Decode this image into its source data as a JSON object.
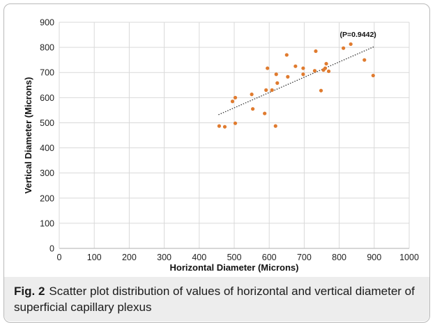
{
  "chart_data": {
    "type": "scatter",
    "title": "",
    "xlabel": "Horizontal Diameter (Microns)",
    "ylabel": "Vertical Diameter (Microns)",
    "xlim": [
      0,
      1000
    ],
    "ylim": [
      0,
      900
    ],
    "xticks": [
      0,
      100,
      200,
      300,
      400,
      500,
      600,
      700,
      800,
      900,
      1000
    ],
    "yticks": [
      0,
      100,
      200,
      300,
      400,
      500,
      600,
      700,
      800,
      900
    ],
    "grid": "both",
    "point_color": "#e07b2f",
    "trendline": {
      "style": "dotted",
      "x": [
        455,
        900
      ],
      "y": [
        532,
        803
      ]
    },
    "annotation": "(P=0.9442)",
    "points": [
      {
        "x": 457,
        "y": 487
      },
      {
        "x": 473,
        "y": 484
      },
      {
        "x": 495,
        "y": 585
      },
      {
        "x": 503,
        "y": 600
      },
      {
        "x": 503,
        "y": 498
      },
      {
        "x": 550,
        "y": 613
      },
      {
        "x": 553,
        "y": 555
      },
      {
        "x": 587,
        "y": 537
      },
      {
        "x": 591,
        "y": 630
      },
      {
        "x": 595,
        "y": 717
      },
      {
        "x": 608,
        "y": 630
      },
      {
        "x": 618,
        "y": 487
      },
      {
        "x": 620,
        "y": 693
      },
      {
        "x": 623,
        "y": 658
      },
      {
        "x": 650,
        "y": 770
      },
      {
        "x": 653,
        "y": 683
      },
      {
        "x": 675,
        "y": 725
      },
      {
        "x": 697,
        "y": 693
      },
      {
        "x": 697,
        "y": 717
      },
      {
        "x": 730,
        "y": 707
      },
      {
        "x": 733,
        "y": 785
      },
      {
        "x": 748,
        "y": 628
      },
      {
        "x": 755,
        "y": 710
      },
      {
        "x": 760,
        "y": 717
      },
      {
        "x": 763,
        "y": 735
      },
      {
        "x": 770,
        "y": 705
      },
      {
        "x": 812,
        "y": 797
      },
      {
        "x": 833,
        "y": 813
      },
      {
        "x": 872,
        "y": 750
      },
      {
        "x": 897,
        "y": 688
      }
    ]
  },
  "caption": {
    "label": "Fig. 2",
    "text": "Scatter plot distribution of values of horizontal and vertical diameter of superficial capillary plexus"
  }
}
